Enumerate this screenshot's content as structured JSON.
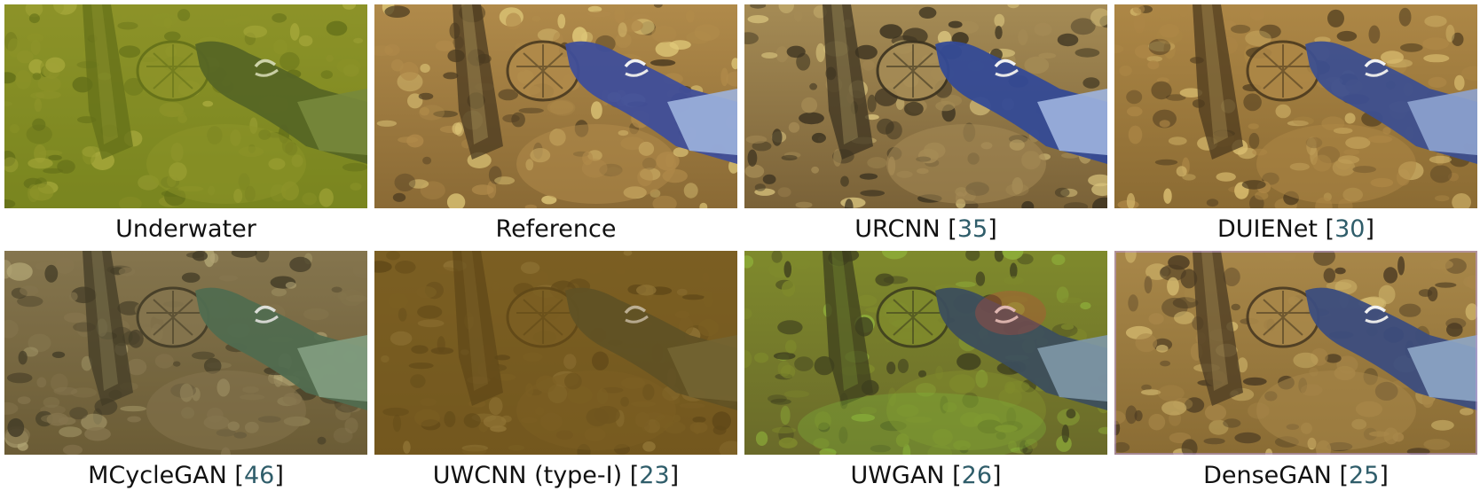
{
  "rows": [
    [
      {
        "label": "Underwater",
        "cite": "",
        "variant": "underwater",
        "colors": {
          "base": "#6f7a1e",
          "mid": "#8d8f2c",
          "dark": "#4f5a14",
          "light": "#b7b24a",
          "glove": "#3a4a26",
          "sleeve": "#6c7f4a"
        }
      },
      {
        "label": "Reference",
        "cite": "",
        "variant": "reference",
        "colors": {
          "base": "#8a6a35",
          "mid": "#b08a4a",
          "dark": "#4a3a20",
          "light": "#e0c97a",
          "glove": "#3f4e9a",
          "sleeve": "#9db2dd"
        }
      },
      {
        "label": "URCNN",
        "cite": "35",
        "variant": "urcnn",
        "colors": {
          "base": "#7a6238",
          "mid": "#a58b55",
          "dark": "#3c3320",
          "light": "#d7c27c",
          "glove": "#344a96",
          "sleeve": "#9eb4df"
        }
      },
      {
        "label": "DUIENet",
        "cite": "30",
        "variant": "duienet",
        "colors": {
          "base": "#8b6b33",
          "mid": "#ad8746",
          "dark": "#4c3a1e",
          "light": "#d9bd70",
          "glove": "#3d4f8f",
          "sleeve": "#8ea3cf"
        }
      }
    ],
    [
      {
        "label": "MCycleGAN",
        "cite": "46",
        "variant": "mcyclegan",
        "colors": {
          "base": "#6e5a34",
          "mid": "#8c7750",
          "dark": "#3f3422",
          "light": "#bfae7c",
          "glove": "#4f6d52",
          "sleeve": "#8aa88c"
        }
      },
      {
        "label": "UWCNN (type-I)",
        "cite": "23",
        "variant": "uwcnn",
        "colors": {
          "base": "#6e5520",
          "mid": "#7d6328",
          "dark": "#4c3a14",
          "light": "#a38a4a",
          "glove": "#4c4a2a",
          "sleeve": "#6f6d44"
        }
      },
      {
        "label": "UWGAN",
        "cite": "26",
        "variant": "uwgan",
        "colors": {
          "base": "#6a6a2a",
          "mid": "#7f8a2c",
          "dark": "#3e3f1e",
          "light": "#8fb03a",
          "glove": "#3c4e5c",
          "sleeve": "#7f98a7"
        }
      },
      {
        "label": "DenseGAN",
        "cite": "25",
        "variant": "densegan",
        "colors": {
          "base": "#8a6c34",
          "mid": "#a88749",
          "dark": "#4a3a22",
          "light": "#d2b86e",
          "glove": "#3c4d7e",
          "sleeve": "#8ea6c7"
        }
      }
    ]
  ]
}
